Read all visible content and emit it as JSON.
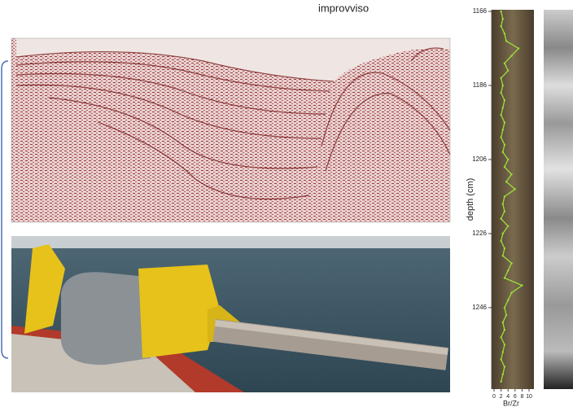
{
  "caption": "improvviso",
  "chart_data": {
    "type": "line",
    "ylabel": "depth (cm)",
    "xlabel": "Br/Zr",
    "color": "#9be03a",
    "depth": [
      1166,
      1168,
      1170,
      1172,
      1174,
      1176,
      1178,
      1180,
      1182,
      1184,
      1186,
      1188,
      1190,
      1192,
      1194,
      1196,
      1198,
      1200,
      1202,
      1204,
      1206,
      1208,
      1210,
      1212,
      1214,
      1216,
      1218,
      1220,
      1222,
      1224,
      1226,
      1228,
      1230,
      1232,
      1234,
      1236,
      1238,
      1240,
      1242,
      1244,
      1246,
      1248,
      1250,
      1252,
      1254,
      1256,
      1258,
      1260,
      1262,
      1264,
      1266
    ],
    "values": [
      2,
      2.5,
      2,
      3,
      3.5,
      7,
      5,
      3,
      4,
      2,
      2.5,
      2,
      3,
      2.5,
      2,
      3,
      2.5,
      2,
      3,
      2.5,
      4,
      3,
      5,
      3.5,
      6,
      3,
      2.5,
      3,
      2,
      4,
      2.5,
      2,
      3,
      2.5,
      5,
      4,
      3,
      8,
      5,
      4,
      3,
      3.5,
      2.5,
      3,
      2,
      3,
      2.5,
      2,
      3,
      2.5,
      2
    ],
    "xlim": [
      0,
      10
    ],
    "xticks": [
      0,
      2,
      4,
      6,
      8,
      10
    ],
    "ylim": [
      1166,
      1268
    ],
    "yticks": [
      1166,
      1186,
      1206,
      1226,
      1246
    ]
  }
}
